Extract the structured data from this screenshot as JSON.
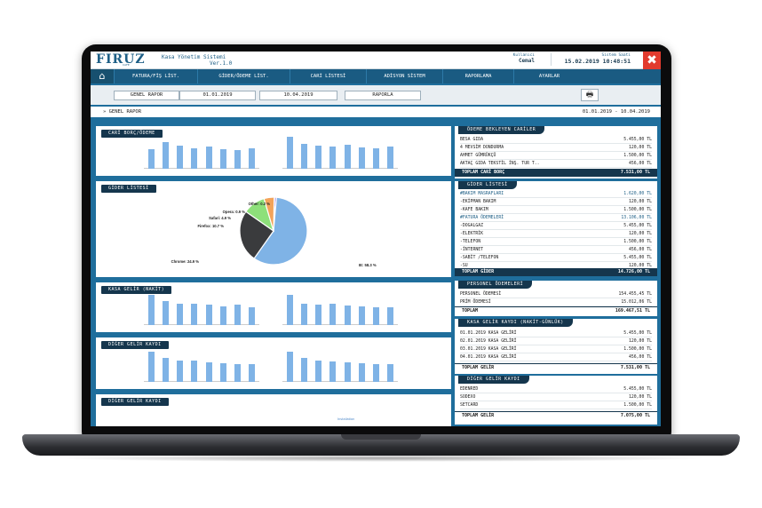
{
  "header": {
    "logo": "FIRUZ",
    "logo_sub": "CAFE",
    "app_title": "Kasa Yönetim Sistemi",
    "app_version": "Ver.1.0",
    "user_label": "Kullanıcı",
    "user_name": "Cemal",
    "time_label": "Sistem Saati",
    "time_value": "15.02.2019 10:48:51",
    "close_glyph": "✖"
  },
  "nav": {
    "home_glyph": "⌂",
    "items": [
      "FATURA/FİŞ LİST.",
      "GİDER/ÖDEME LİST.",
      "CARİ LİSTESİ",
      "ADİSYON SİSTEM",
      "RAPORLAMA",
      "AYARLAR"
    ]
  },
  "report_bar": {
    "report_label": "GENEL RAPOR",
    "start_date": "01.01.2019",
    "end_date": "10.04.2019",
    "report_button": "RAPORLA",
    "print_glyph": "🖶"
  },
  "report_title": {
    "left": "» GENEL RAPOR",
    "right": "01.01.2019 - 10.04.2019"
  },
  "panels": {
    "cari": "CARİ BORÇ/ÖDEME",
    "gider": "GİDER LİSTESİ",
    "kasa": "KASA GELİR (NAKİT)",
    "diger1": "DİĞER GELİR KAYDI",
    "diger2": "DİĞER GELİR KAYDI",
    "diger2_link": "Installation"
  },
  "pie": {
    "slices": [
      {
        "label": "IE: 58.3 %",
        "value": 58.3,
        "color": "#7fb3e6"
      },
      {
        "label": "Chrome: 24.9 %",
        "value": 24.9,
        "color": "#3a3b3d"
      },
      {
        "label": "Firefox: 10.7 %",
        "value": 10.7,
        "color": "#8de07a"
      },
      {
        "label": "Safari: 4.9 %",
        "value": 4.9,
        "color": "#f3a35a"
      },
      {
        "label": "Opera: 0.9 %",
        "value": 0.9,
        "color": "#9070d8"
      },
      {
        "label": "Other: 0.2 %",
        "value": 0.2,
        "color": "#e3d05b"
      }
    ]
  },
  "bar_sets": {
    "cari_a": [
      0.7,
      0.95,
      0.8,
      0.72,
      0.78,
      0.68,
      0.65,
      0.72
    ],
    "cari_b": [
      1.0,
      0.78,
      0.72,
      0.7,
      0.75,
      0.68,
      0.65,
      0.7
    ],
    "kasa_a": [
      1.0,
      0.78,
      0.72,
      0.7,
      0.68,
      0.62,
      0.68,
      0.6
    ],
    "kasa_b": [
      1.0,
      0.72,
      0.68,
      0.7,
      0.66,
      0.62,
      0.58,
      0.6
    ],
    "diger_a": [
      1.0,
      0.78,
      0.72,
      0.7,
      0.66,
      0.62,
      0.6,
      0.6
    ],
    "diger_b": [
      1.0,
      0.8,
      0.72,
      0.68,
      0.66,
      0.62,
      0.6,
      0.58
    ]
  },
  "odeme_bekleyen": {
    "title": "ÖDEME BEKLEYEN CARİLER",
    "rows": [
      {
        "name": "BESA GIDA",
        "amount": "5.455,00 TL"
      },
      {
        "name": "4 MEVSİM DONDURMA",
        "amount": "120,00 TL"
      },
      {
        "name": "AHMET GÜMRÜKÇÜ",
        "amount": "1.500,00 TL"
      },
      {
        "name": "AKTAÇ GIDA TEKSTİL İNŞ. TUR T..",
        "amount": "456,00 TL"
      }
    ],
    "total_label": "TOPLAM CARİ BORÇ",
    "total_value": "7.531,00 TL"
  },
  "gider_listesi": {
    "title": "GİDER LİSTESİ",
    "rows": [
      {
        "name": "#BAKIM MASRAFLARI",
        "amount": "1.620,00 TL",
        "head": true
      },
      {
        "name": "-EKİPMAN BAKIM",
        "amount": "120,00 TL",
        "head": false
      },
      {
        "name": "-KAFE BAKIM",
        "amount": "1.500,00 TL",
        "head": false
      },
      {
        "name": "#FATURA ÖDEMELERİ",
        "amount": "13.106,00 TL",
        "head": true
      },
      {
        "name": "-DOGALGAZ",
        "amount": "5.455,00 TL",
        "head": false
      },
      {
        "name": "-ELEKTRİK",
        "amount": "120,00 TL",
        "head": false
      },
      {
        "name": "-TELEFON",
        "amount": "1.500,00 TL",
        "head": false
      },
      {
        "name": "-İNTERNET",
        "amount": "456,00 TL",
        "head": false
      },
      {
        "name": "-SABİT /TELEFON",
        "amount": "5.455,00 TL",
        "head": false
      },
      {
        "name": "-SU",
        "amount": "120,00 TL",
        "head": false
      }
    ],
    "total_label": "TOPLAM GİDER",
    "total_value": "14.726,00 TL"
  },
  "personel": {
    "title": "PERSONEL ÖDEMELERİ",
    "rows": [
      {
        "name": "PERSONEL ÖDEMESİ",
        "amount": "154.455,45 TL"
      },
      {
        "name": "PRİM ÖDEMESİ",
        "amount": "15.012,06 TL"
      }
    ],
    "total_label": "TOPLAM",
    "total_value": "169.467,51 TL"
  },
  "kasa_gelir": {
    "title": "KASA GELİR KAYDI (NAKİT-GÜNLÜK)",
    "rows": [
      {
        "name": "01.01.2019 KASA GELİRİ",
        "amount": "5.455,00 TL"
      },
      {
        "name": "02.01.2019 KASA GELİRİ",
        "amount": "120,00 TL"
      },
      {
        "name": "03.01.2019 KASA GELİRİ",
        "amount": "1.500,00 TL"
      },
      {
        "name": "04.01.2019 KASA GELİRİ",
        "amount": "456,00 TL"
      }
    ],
    "total_label": "TOPLAM GELİR",
    "total_value": "7.531,00 TL"
  },
  "diger_gelir": {
    "title": "DİĞER GELİR KAYDI",
    "rows": [
      {
        "name": "EDENRED",
        "amount": "5.455,00 TL"
      },
      {
        "name": "SODEXO",
        "amount": "120,00 TL"
      },
      {
        "name": "SETCARD",
        "amount": "1.500,00 TL"
      }
    ],
    "total_label": "TOPLAM GELİR",
    "total_value": "7.075,00 TL"
  }
}
